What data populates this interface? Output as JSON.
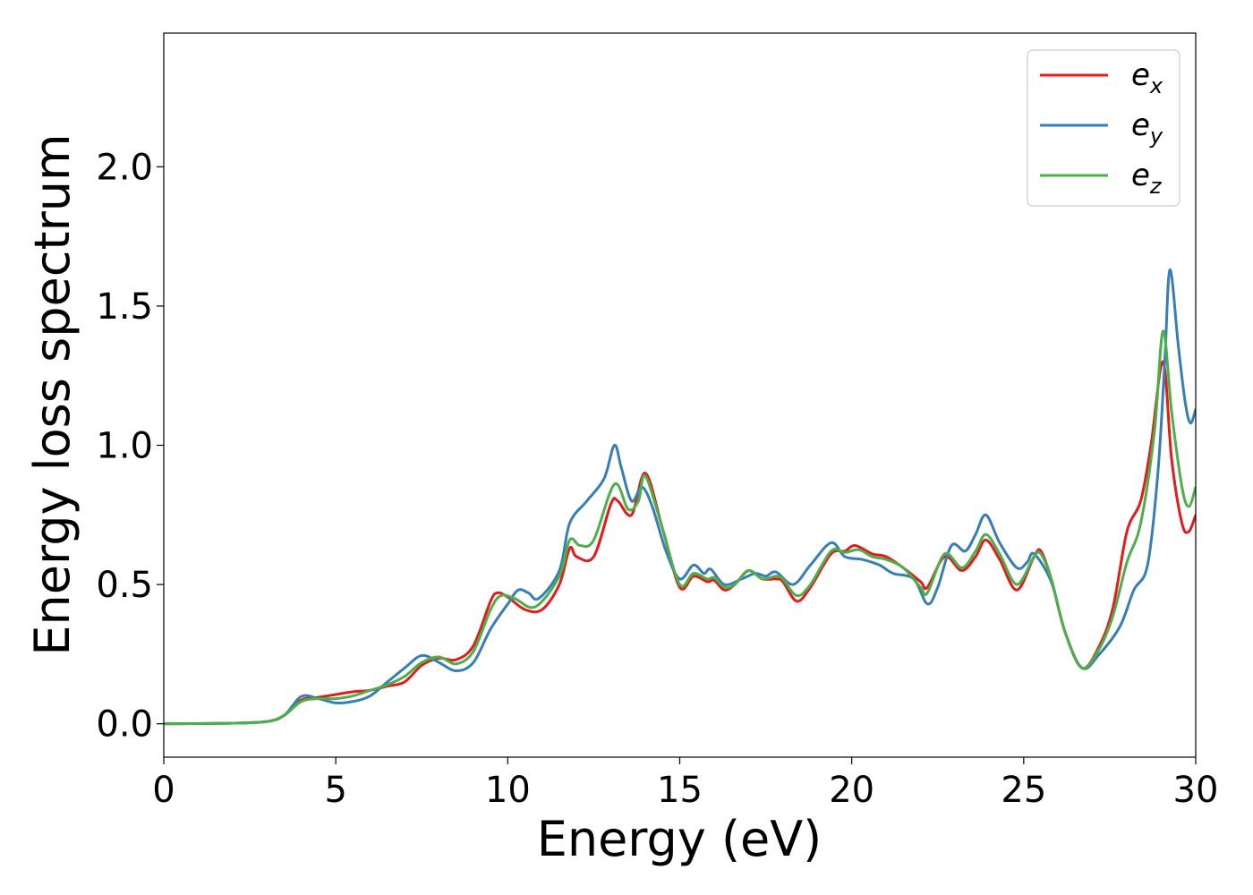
{
  "chart_data": {
    "type": "line",
    "xlabel": "Energy (eV)",
    "ylabel": "Energy loss spectrum",
    "xlim": [
      0,
      30
    ],
    "ylim": [
      -0.12,
      2.48
    ],
    "xticks": [
      "0",
      "5",
      "10",
      "15",
      "20",
      "25",
      "30"
    ],
    "yticks": [
      "0.0",
      "0.5",
      "1.0",
      "1.5",
      "2.0"
    ],
    "legend_position": "top-right",
    "grid": false,
    "series": [
      {
        "name": "e_x",
        "base": "e",
        "sub": "x",
        "color": "#e41a1c",
        "points": [
          [
            0,
            0
          ],
          [
            2,
            0.002
          ],
          [
            3,
            0.008
          ],
          [
            3.5,
            0.03
          ],
          [
            4,
            0.085
          ],
          [
            4.5,
            0.095
          ],
          [
            5,
            0.105
          ],
          [
            5.5,
            0.115
          ],
          [
            6,
            0.12
          ],
          [
            6.5,
            0.135
          ],
          [
            7,
            0.15
          ],
          [
            7.5,
            0.21
          ],
          [
            8,
            0.235
          ],
          [
            8.5,
            0.23
          ],
          [
            9,
            0.28
          ],
          [
            9.5,
            0.44
          ],
          [
            9.7,
            0.47
          ],
          [
            10,
            0.455
          ],
          [
            10.5,
            0.41
          ],
          [
            11,
            0.41
          ],
          [
            11.5,
            0.5
          ],
          [
            11.8,
            0.63
          ],
          [
            12,
            0.6
          ],
          [
            12.5,
            0.6
          ],
          [
            13,
            0.79
          ],
          [
            13.2,
            0.8
          ],
          [
            13.6,
            0.75
          ],
          [
            14,
            0.9
          ],
          [
            14.5,
            0.7
          ],
          [
            15,
            0.49
          ],
          [
            15.4,
            0.53
          ],
          [
            15.8,
            0.51
          ],
          [
            16,
            0.515
          ],
          [
            16.3,
            0.48
          ],
          [
            16.6,
            0.5
          ],
          [
            17,
            0.55
          ],
          [
            17.4,
            0.52
          ],
          [
            17.8,
            0.52
          ],
          [
            18,
            0.51
          ],
          [
            18.4,
            0.44
          ],
          [
            18.8,
            0.49
          ],
          [
            19.4,
            0.61
          ],
          [
            19.8,
            0.62
          ],
          [
            20.1,
            0.64
          ],
          [
            20.6,
            0.61
          ],
          [
            21,
            0.6
          ],
          [
            21.5,
            0.56
          ],
          [
            22,
            0.51
          ],
          [
            22.2,
            0.49
          ],
          [
            22.7,
            0.6
          ],
          [
            23.2,
            0.55
          ],
          [
            23.6,
            0.6
          ],
          [
            23.9,
            0.66
          ],
          [
            24.3,
            0.59
          ],
          [
            24.8,
            0.48
          ],
          [
            25.3,
            0.6
          ],
          [
            25.5,
            0.62
          ],
          [
            25.8,
            0.52
          ],
          [
            26.2,
            0.33
          ],
          [
            26.7,
            0.2
          ],
          [
            27.2,
            0.28
          ],
          [
            27.6,
            0.42
          ],
          [
            28,
            0.69
          ],
          [
            28.4,
            0.8
          ],
          [
            28.7,
            1.0
          ],
          [
            29.05,
            1.3
          ],
          [
            29.3,
            0.95
          ],
          [
            29.6,
            0.72
          ],
          [
            29.8,
            0.69
          ],
          [
            30,
            0.75
          ]
        ]
      },
      {
        "name": "e_y",
        "base": "e",
        "sub": "y",
        "color": "#377eb8",
        "points": [
          [
            0,
            0
          ],
          [
            2,
            0.002
          ],
          [
            3,
            0.008
          ],
          [
            3.5,
            0.03
          ],
          [
            4,
            0.098
          ],
          [
            4.5,
            0.09
          ],
          [
            5,
            0.075
          ],
          [
            5.5,
            0.08
          ],
          [
            6,
            0.1
          ],
          [
            6.5,
            0.15
          ],
          [
            7,
            0.2
          ],
          [
            7.5,
            0.245
          ],
          [
            8,
            0.22
          ],
          [
            8.5,
            0.19
          ],
          [
            9,
            0.22
          ],
          [
            9.5,
            0.34
          ],
          [
            10,
            0.43
          ],
          [
            10.3,
            0.48
          ],
          [
            10.6,
            0.47
          ],
          [
            10.9,
            0.45
          ],
          [
            11.5,
            0.55
          ],
          [
            11.8,
            0.72
          ],
          [
            12.3,
            0.8
          ],
          [
            12.8,
            0.88
          ],
          [
            13.1,
            1.0
          ],
          [
            13.3,
            0.92
          ],
          [
            13.6,
            0.8
          ],
          [
            13.9,
            0.85
          ],
          [
            14.2,
            0.78
          ],
          [
            14.6,
            0.62
          ],
          [
            15,
            0.52
          ],
          [
            15.4,
            0.57
          ],
          [
            15.7,
            0.54
          ],
          [
            15.9,
            0.555
          ],
          [
            16.3,
            0.5
          ],
          [
            16.8,
            0.52
          ],
          [
            17.2,
            0.54
          ],
          [
            17.5,
            0.53
          ],
          [
            17.8,
            0.545
          ],
          [
            18.3,
            0.5
          ],
          [
            18.8,
            0.57
          ],
          [
            19.4,
            0.65
          ],
          [
            19.8,
            0.6
          ],
          [
            20.3,
            0.59
          ],
          [
            20.8,
            0.57
          ],
          [
            21.2,
            0.54
          ],
          [
            21.8,
            0.52
          ],
          [
            22.2,
            0.43
          ],
          [
            22.5,
            0.49
          ],
          [
            22.9,
            0.64
          ],
          [
            23.3,
            0.62
          ],
          [
            23.6,
            0.68
          ],
          [
            23.9,
            0.75
          ],
          [
            24.3,
            0.65
          ],
          [
            24.8,
            0.56
          ],
          [
            25.1,
            0.58
          ],
          [
            25.3,
            0.61
          ],
          [
            25.8,
            0.51
          ],
          [
            26.2,
            0.33
          ],
          [
            26.7,
            0.2
          ],
          [
            27.2,
            0.25
          ],
          [
            27.8,
            0.35
          ],
          [
            28.2,
            0.48
          ],
          [
            28.6,
            0.57
          ],
          [
            28.9,
            0.9
          ],
          [
            29.1,
            1.3
          ],
          [
            29.25,
            1.63
          ],
          [
            29.5,
            1.35
          ],
          [
            29.7,
            1.15
          ],
          [
            29.85,
            1.08
          ],
          [
            30,
            1.13
          ]
        ]
      },
      {
        "name": "e_z",
        "base": "e",
        "sub": "z",
        "color": "#4daf4a",
        "points": [
          [
            0,
            0
          ],
          [
            2,
            0.002
          ],
          [
            3,
            0.008
          ],
          [
            3.5,
            0.03
          ],
          [
            4,
            0.08
          ],
          [
            4.5,
            0.09
          ],
          [
            5,
            0.09
          ],
          [
            5.5,
            0.1
          ],
          [
            6,
            0.12
          ],
          [
            6.5,
            0.14
          ],
          [
            7,
            0.17
          ],
          [
            7.5,
            0.22
          ],
          [
            8,
            0.24
          ],
          [
            8.5,
            0.215
          ],
          [
            9,
            0.26
          ],
          [
            9.5,
            0.41
          ],
          [
            9.8,
            0.46
          ],
          [
            10.2,
            0.45
          ],
          [
            10.8,
            0.42
          ],
          [
            11.5,
            0.53
          ],
          [
            11.8,
            0.66
          ],
          [
            12.1,
            0.64
          ],
          [
            12.5,
            0.66
          ],
          [
            13.1,
            0.86
          ],
          [
            13.5,
            0.77
          ],
          [
            13.8,
            0.8
          ],
          [
            14,
            0.89
          ],
          [
            14.5,
            0.7
          ],
          [
            15,
            0.5
          ],
          [
            15.4,
            0.54
          ],
          [
            15.8,
            0.52
          ],
          [
            16,
            0.525
          ],
          [
            16.3,
            0.49
          ],
          [
            16.6,
            0.5
          ],
          [
            17,
            0.55
          ],
          [
            17.4,
            0.52
          ],
          [
            17.8,
            0.53
          ],
          [
            18,
            0.52
          ],
          [
            18.4,
            0.46
          ],
          [
            18.8,
            0.5
          ],
          [
            19.4,
            0.62
          ],
          [
            19.8,
            0.615
          ],
          [
            20.2,
            0.625
          ],
          [
            20.6,
            0.6
          ],
          [
            21,
            0.59
          ],
          [
            21.5,
            0.56
          ],
          [
            22,
            0.49
          ],
          [
            22.2,
            0.47
          ],
          [
            22.7,
            0.61
          ],
          [
            23.2,
            0.56
          ],
          [
            23.6,
            0.62
          ],
          [
            23.9,
            0.68
          ],
          [
            24.3,
            0.61
          ],
          [
            24.8,
            0.5
          ],
          [
            25.3,
            0.6
          ],
          [
            25.5,
            0.61
          ],
          [
            25.8,
            0.52
          ],
          [
            26.2,
            0.33
          ],
          [
            26.7,
            0.2
          ],
          [
            27.2,
            0.27
          ],
          [
            27.6,
            0.39
          ],
          [
            28,
            0.58
          ],
          [
            28.4,
            0.72
          ],
          [
            28.8,
            1.05
          ],
          [
            29.05,
            1.41
          ],
          [
            29.3,
            1.12
          ],
          [
            29.6,
            0.85
          ],
          [
            29.8,
            0.78
          ],
          [
            30,
            0.85
          ]
        ]
      }
    ]
  }
}
